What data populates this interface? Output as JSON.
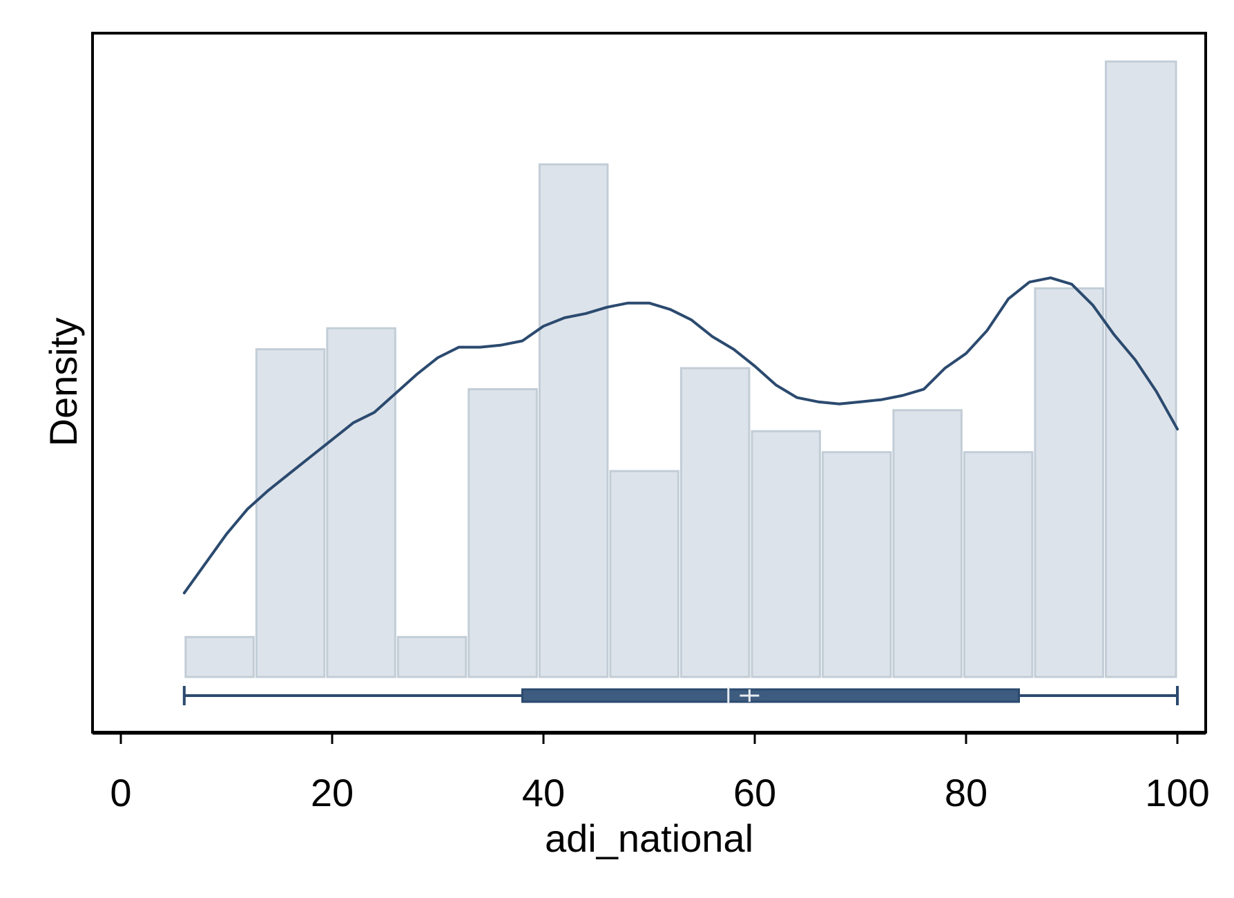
{
  "chart_data": {
    "type": "histogram",
    "title": "",
    "xlabel": "adi_national",
    "ylabel": "Density",
    "xlim": [
      -0.5,
      102.2
    ],
    "xticks": [
      0,
      20,
      40,
      60,
      80,
      100
    ],
    "xtick_labels": [
      "0",
      "20",
      "40",
      "60",
      "80",
      "100"
    ],
    "yticks": [],
    "grid": false,
    "legend": "none",
    "histogram": {
      "bin_edges": [
        6,
        12.7,
        19.4,
        26.1,
        32.8,
        39.5,
        46.2,
        52.9,
        59.6,
        66.3,
        73,
        79.7,
        86.4,
        93.1,
        100
      ],
      "heights": [
        0.0019,
        0.0156,
        0.0166,
        0.0019,
        0.0137,
        0.0244,
        0.0098,
        0.0147,
        0.0117,
        0.0107,
        0.0127,
        0.0107,
        0.0185,
        0.0293
      ]
    },
    "kde": {
      "x": [
        6,
        8,
        10,
        12,
        14,
        16,
        18,
        20,
        22,
        24,
        26,
        28,
        30,
        32,
        34,
        36,
        38,
        40,
        42,
        44,
        46,
        48,
        50,
        52,
        54,
        56,
        58,
        60,
        62,
        64,
        66,
        68,
        70,
        72,
        74,
        76,
        78,
        80,
        82,
        84,
        86,
        88,
        90,
        92,
        94,
        96,
        98,
        100
      ],
      "y": [
        0.004,
        0.0054,
        0.0068,
        0.008,
        0.0089,
        0.0097,
        0.0105,
        0.0113,
        0.0121,
        0.0126,
        0.0135,
        0.0144,
        0.0152,
        0.0157,
        0.0157,
        0.0158,
        0.016,
        0.0167,
        0.0171,
        0.0173,
        0.0176,
        0.0178,
        0.0178,
        0.0175,
        0.017,
        0.0162,
        0.0156,
        0.0148,
        0.0139,
        0.0133,
        0.0131,
        0.013,
        0.0131,
        0.0132,
        0.0134,
        0.0137,
        0.0147,
        0.0154,
        0.0165,
        0.018,
        0.0188,
        0.019,
        0.0187,
        0.0177,
        0.0163,
        0.0151,
        0.0136,
        0.0118
      ]
    },
    "boxplot": {
      "min": 6,
      "q1": 38,
      "median": 57.5,
      "mean": 59.5,
      "q3": 85,
      "max": 100
    },
    "colors": {
      "bar_fill": "#dde3ea",
      "bar_stroke": "#c2cdd7",
      "line": "#2b4a6f",
      "box_fill": "#3e5c7f",
      "box_stroke": "#2b4a6f",
      "box_marker": "#e8ecf1",
      "frame": "#000000"
    }
  }
}
